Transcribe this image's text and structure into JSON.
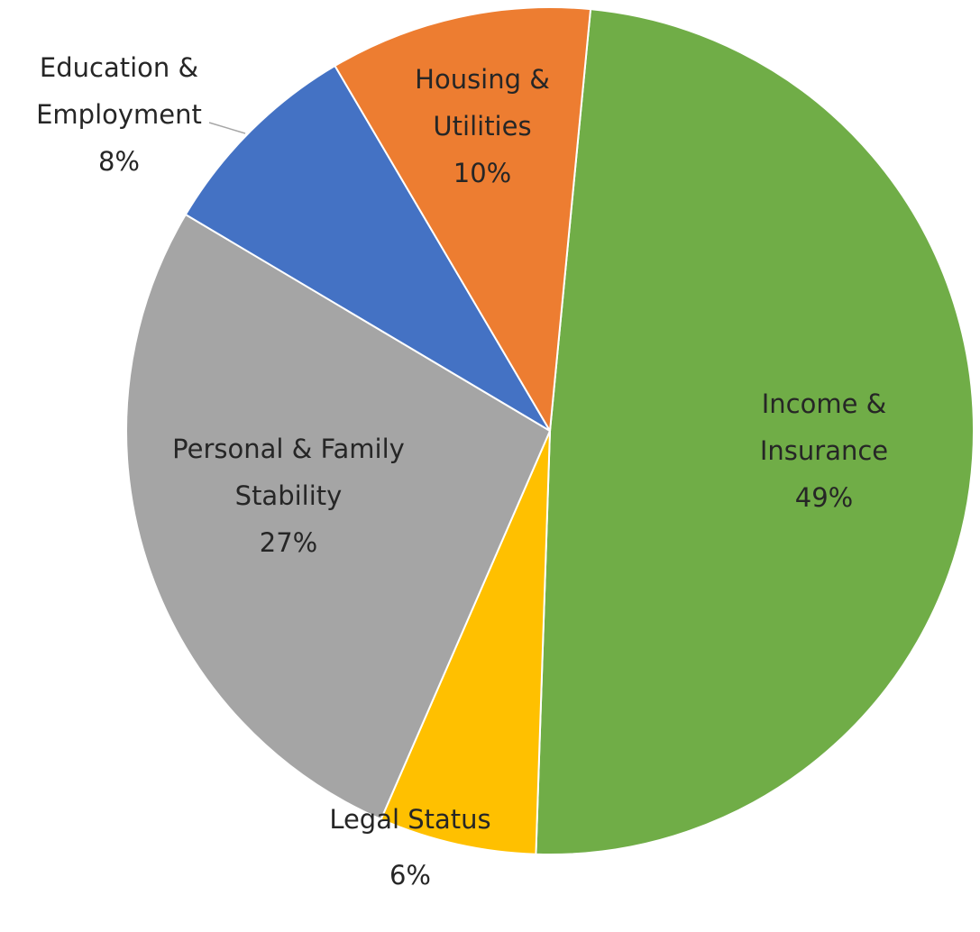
{
  "chart_data": {
    "type": "pie",
    "categories": [
      "Income & Insurance",
      "Legal Status",
      "Personal & Family Stability",
      "Education & Employment",
      "Housing & Utilities"
    ],
    "values": [
      49,
      6,
      27,
      8,
      10
    ],
    "value_labels": [
      "49%",
      "6%",
      "27%",
      "8%",
      "10%"
    ],
    "colors": [
      "#70ad47",
      "#ffc000",
      "#a5a5a5",
      "#4472c4",
      "#ed7d31"
    ]
  }
}
